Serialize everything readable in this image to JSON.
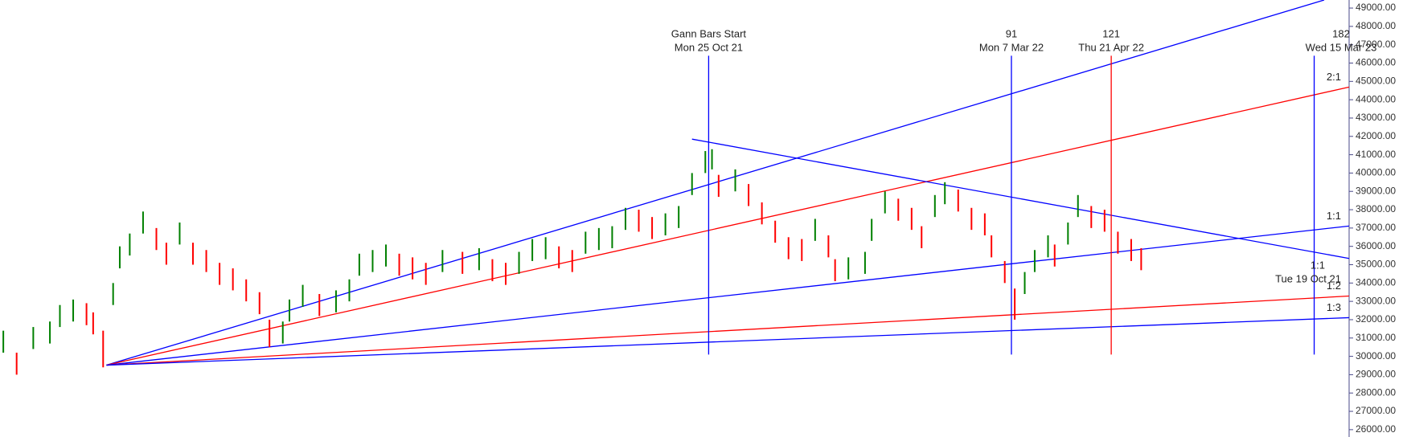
{
  "chart_data": {
    "type": "ohlc",
    "up_color": "#008000",
    "down_color": "#ff0000",
    "xlim": [
      -213,
      192.5
    ],
    "ylim": [
      25600,
      49440
    ],
    "yticks": [
      {
        "value": 26000,
        "label": "26000.00"
      },
      {
        "value": 27000,
        "label": "27000.00"
      },
      {
        "value": 28000,
        "label": "28000.00"
      },
      {
        "value": 29000,
        "label": "29000.00"
      },
      {
        "value": 30000,
        "label": "30000.00"
      },
      {
        "value": 31000,
        "label": "31000.00"
      },
      {
        "value": 32000,
        "label": "32000.00"
      },
      {
        "value": 33000,
        "label": "33000.00"
      },
      {
        "value": 34000,
        "label": "34000.00"
      },
      {
        "value": 35000,
        "label": "35000.00"
      },
      {
        "value": 36000,
        "label": "36000.00"
      },
      {
        "value": 37000,
        "label": "37000.00"
      },
      {
        "value": 38000,
        "label": "38000.00"
      },
      {
        "value": 39000,
        "label": "39000.00"
      },
      {
        "value": 40000,
        "label": "40000.00"
      },
      {
        "value": 41000,
        "label": "41000.00"
      },
      {
        "value": 42000,
        "label": "42000.00"
      },
      {
        "value": 43000,
        "label": "43000.00"
      },
      {
        "value": 44000,
        "label": "44000.00"
      },
      {
        "value": 45000,
        "label": "45000.00"
      },
      {
        "value": 46000,
        "label": "46000.00"
      },
      {
        "value": 47000,
        "label": "47000.00"
      },
      {
        "value": 48000,
        "label": "48000.00"
      },
      {
        "value": 49000,
        "label": "49000.00"
      }
    ],
    "x": [
      -212,
      -208,
      -203,
      -198,
      -195,
      -191,
      -187,
      -185,
      -182,
      -179,
      -177,
      -174,
      -170,
      -166,
      -163,
      -159,
      -155,
      -151,
      -147,
      -143,
      -139,
      -135,
      -132,
      -128,
      -126,
      -122,
      -117,
      -112,
      -108,
      -105,
      -101,
      -97,
      -93,
      -89,
      -85,
      -80,
      -74,
      -69,
      -65,
      -61,
      -57,
      -53,
      -49,
      -45,
      -41,
      -37,
      -33,
      -29,
      -25,
      -21,
      -17,
      -13,
      -9,
      -5,
      -1,
      1,
      3,
      8,
      12,
      16,
      20,
      24,
      28,
      32,
      36,
      38,
      42,
      47,
      49,
      53,
      57,
      61,
      64,
      68,
      71,
      75,
      79,
      83,
      85,
      89,
      92,
      95,
      98,
      102,
      104,
      108,
      111,
      115,
      119,
      123,
      127,
      130
    ],
    "high": [
      31400,
      30200,
      31600,
      31900,
      32800,
      33100,
      32900,
      32400,
      31400,
      34000,
      36000,
      36700,
      37900,
      37000,
      36200,
      37300,
      36200,
      35800,
      35100,
      34800,
      34200,
      33500,
      32000,
      31900,
      33100,
      33900,
      33400,
      33600,
      34200,
      35600,
      35800,
      36100,
      35600,
      35400,
      35100,
      35800,
      35700,
      35900,
      35300,
      35100,
      35700,
      36400,
      36500,
      36000,
      35800,
      36800,
      37000,
      37100,
      38100,
      38000,
      37600,
      37800,
      38200,
      40000,
      41200,
      41300,
      39900,
      40200,
      39400,
      38400,
      37400,
      36500,
      36400,
      37500,
      36600,
      35300,
      35400,
      35700,
      37500,
      39000,
      38600,
      38100,
      37100,
      38800,
      39500,
      39100,
      38100,
      37800,
      36600,
      35200,
      33700,
      34600,
      35800,
      36600,
      36100,
      37300,
      38800,
      38200,
      38000,
      36800,
      36400,
      35900
    ],
    "low": [
      30200,
      29000,
      30400,
      30700,
      31600,
      31900,
      31700,
      31200,
      29400,
      32800,
      34800,
      35500,
      36700,
      35800,
      35000,
      36100,
      35000,
      34600,
      33900,
      33600,
      33000,
      32300,
      30500,
      30700,
      31900,
      32700,
      32200,
      32400,
      33000,
      34400,
      34600,
      34900,
      34400,
      34200,
      33900,
      34600,
      34500,
      34700,
      34100,
      33900,
      34500,
      35200,
      35300,
      34800,
      34600,
      35600,
      35800,
      35900,
      36900,
      36800,
      36400,
      36600,
      37000,
      38800,
      40000,
      40200,
      38700,
      39000,
      38200,
      37200,
      36200,
      35300,
      35200,
      36300,
      35400,
      34100,
      34200,
      34500,
      36300,
      37800,
      37400,
      36900,
      35900,
      37600,
      38300,
      37900,
      36900,
      36600,
      35400,
      34000,
      32000,
      33400,
      34600,
      35400,
      34900,
      36100,
      37600,
      37000,
      36800,
      35600,
      35200,
      34700
    ],
    "fan_lines": [
      {
        "color": "#0000ff",
        "x": [
          -181,
          185
        ],
        "y": [
          29520,
          49440
        ]
      },
      {
        "color": "#ff0000",
        "x": [
          -181,
          192.5
        ],
        "y": [
          29520,
          44690
        ],
        "label": "2:1"
      },
      {
        "color": "#0000ff",
        "x": [
          -181,
          192.5
        ],
        "y": [
          29520,
          37110
        ],
        "label": "1:1"
      },
      {
        "color": "#ff0000",
        "x": [
          -181,
          192.5
        ],
        "y": [
          29520,
          33290
        ],
        "label": "1:2"
      },
      {
        "color": "#0000ff",
        "x": [
          -181,
          192.5
        ],
        "y": [
          29520,
          32110
        ],
        "label": "1:3"
      },
      {
        "color": "#0000ff",
        "x": [
          -5,
          192.5
        ],
        "y": [
          41850,
          35340
        ]
      }
    ],
    "vlines": [
      {
        "x": 0,
        "y": [
          30100,
          46400
        ],
        "color": "#0000ff",
        "labels": [
          "Gann Bars Start",
          "Mon 25 Oct 21"
        ]
      },
      {
        "x": 91,
        "y": [
          30100,
          46400
        ],
        "color": "#0000ff",
        "labels": [
          "91",
          "Mon 7 Mar 22"
        ]
      },
      {
        "x": 121,
        "y": [
          30100,
          46400
        ],
        "color": "#ff0000",
        "labels": [
          "121",
          "Thu 21 Apr 22"
        ]
      },
      {
        "x": 182,
        "y": [
          30100,
          46400
        ],
        "color": "#0000ff",
        "labels": [
          "182",
          "Wed 15 Mar 23"
        ]
      }
    ],
    "annotation": [
      "1:1",
      "Tue 19 Oct 21"
    ]
  }
}
